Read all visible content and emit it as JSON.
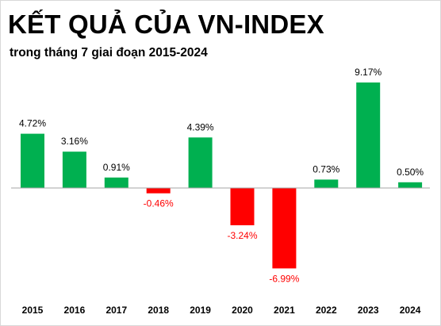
{
  "header": {
    "title": "KẾT QUẢ CỦA VN-INDEX",
    "subtitle": "trong tháng 7 giai đoạn 2015-2024"
  },
  "colors": {
    "positive": "#00b050",
    "negative": "#ff0000",
    "axis": "#a6a6a6",
    "positive_label": "#000000",
    "negative_label": "#ff0000"
  },
  "chart_data": {
    "type": "bar",
    "title": "KẾT QUẢ CỦA VN-INDEX",
    "subtitle": "trong tháng 7 giai đoạn 2015-2024",
    "categories": [
      "2015",
      "2016",
      "2017",
      "2018",
      "2019",
      "2020",
      "2021",
      "2022",
      "2023",
      "2024"
    ],
    "values": [
      4.72,
      3.16,
      0.91,
      -0.46,
      4.39,
      -3.24,
      -6.99,
      0.73,
      9.17,
      0.5
    ],
    "data_labels": [
      "4.72%",
      "3.16%",
      "0.91%",
      "-0.46%",
      "4.39%",
      "-3.24%",
      "-6.99%",
      "0.73%",
      "9.17%",
      "0.50%"
    ],
    "xlabel": "",
    "ylabel": "",
    "ylim": [
      -7,
      9.5
    ],
    "grid": false,
    "legend": "none"
  }
}
